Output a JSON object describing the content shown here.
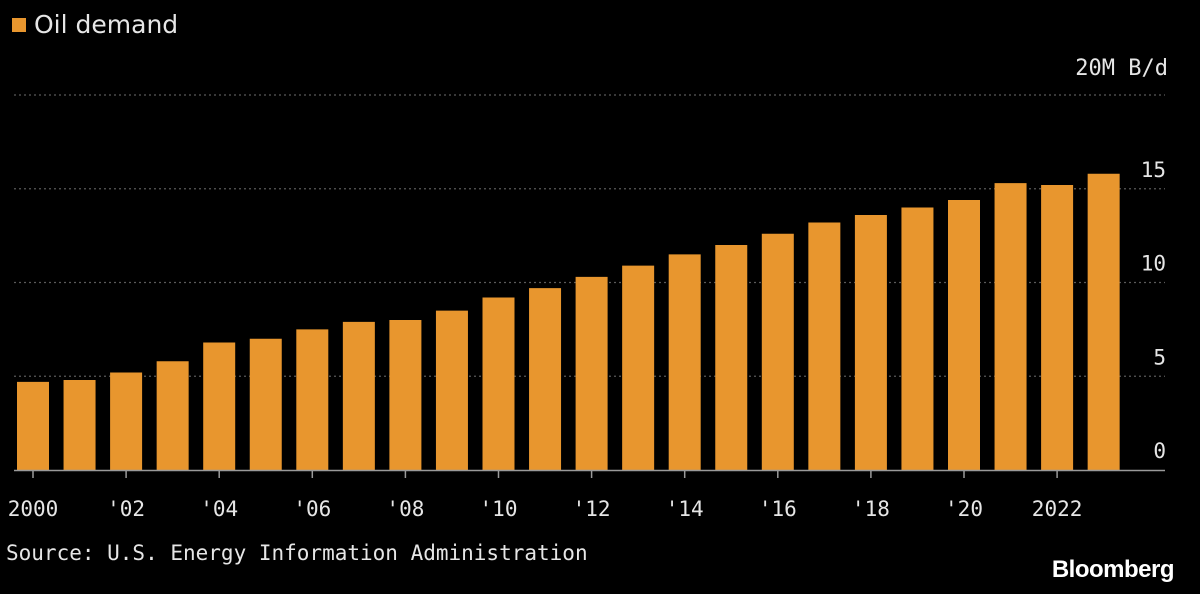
{
  "colors": {
    "background": "#000000",
    "bar": "#e8962e",
    "grid": "#5a5a5a",
    "text": "#e6e6e6",
    "brand": "#ffffff"
  },
  "legend": {
    "label": "Oil demand",
    "icon": "square-swatch"
  },
  "unit_label": "20M B/d",
  "source": "Source: U.S. Energy Information Administration",
  "brand": "Bloomberg",
  "chart_data": {
    "type": "bar",
    "title": "",
    "xlabel": "",
    "ylabel": "20M B/d",
    "ylim": [
      0,
      20
    ],
    "yticks": [
      0,
      5,
      10,
      15
    ],
    "grid": true,
    "legend_position": "top-left",
    "categories": [
      "2000",
      "2001",
      "2002",
      "2003",
      "2004",
      "2005",
      "2006",
      "2007",
      "2008",
      "2009",
      "2010",
      "2011",
      "2012",
      "2013",
      "2014",
      "2015",
      "2016",
      "2017",
      "2018",
      "2019",
      "2020",
      "2021",
      "2022",
      "2023"
    ],
    "xtick_labels": [
      {
        "category": "2000",
        "label": "2000"
      },
      {
        "category": "2002",
        "label": "'02"
      },
      {
        "category": "2004",
        "label": "'04"
      },
      {
        "category": "2006",
        "label": "'06"
      },
      {
        "category": "2008",
        "label": "'08"
      },
      {
        "category": "2010",
        "label": "'10"
      },
      {
        "category": "2012",
        "label": "'12"
      },
      {
        "category": "2014",
        "label": "'14"
      },
      {
        "category": "2016",
        "label": "'16"
      },
      {
        "category": "2018",
        "label": "'18"
      },
      {
        "category": "2020",
        "label": "'20"
      },
      {
        "category": "2022",
        "label": "2022"
      }
    ],
    "series": [
      {
        "name": "Oil demand",
        "values": [
          4.7,
          4.8,
          5.2,
          5.8,
          6.8,
          7.0,
          7.5,
          7.9,
          8.0,
          8.5,
          9.2,
          9.7,
          10.3,
          10.9,
          11.5,
          12.0,
          12.6,
          13.2,
          13.6,
          14.0,
          14.4,
          15.3,
          15.2,
          15.8
        ]
      }
    ]
  }
}
